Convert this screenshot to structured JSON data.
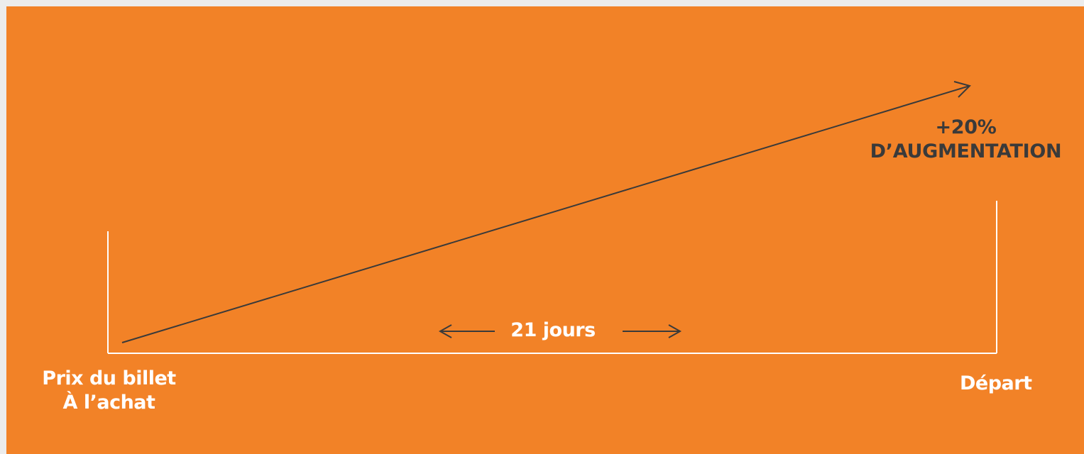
{
  "diagram": {
    "start": {
      "line1": "Prix du billet",
      "line2": "À l’achat"
    },
    "end": {
      "label": "Départ"
    },
    "increase": {
      "percent": "+20%",
      "text": "D’AUGMENTATION"
    },
    "duration": {
      "label": "21 jours"
    },
    "colors": {
      "background": "#f28227",
      "marker_lines": "#ffffff",
      "trend_arrow": "#3a3a3a",
      "duration_arrows": "#3a3a3a"
    }
  }
}
